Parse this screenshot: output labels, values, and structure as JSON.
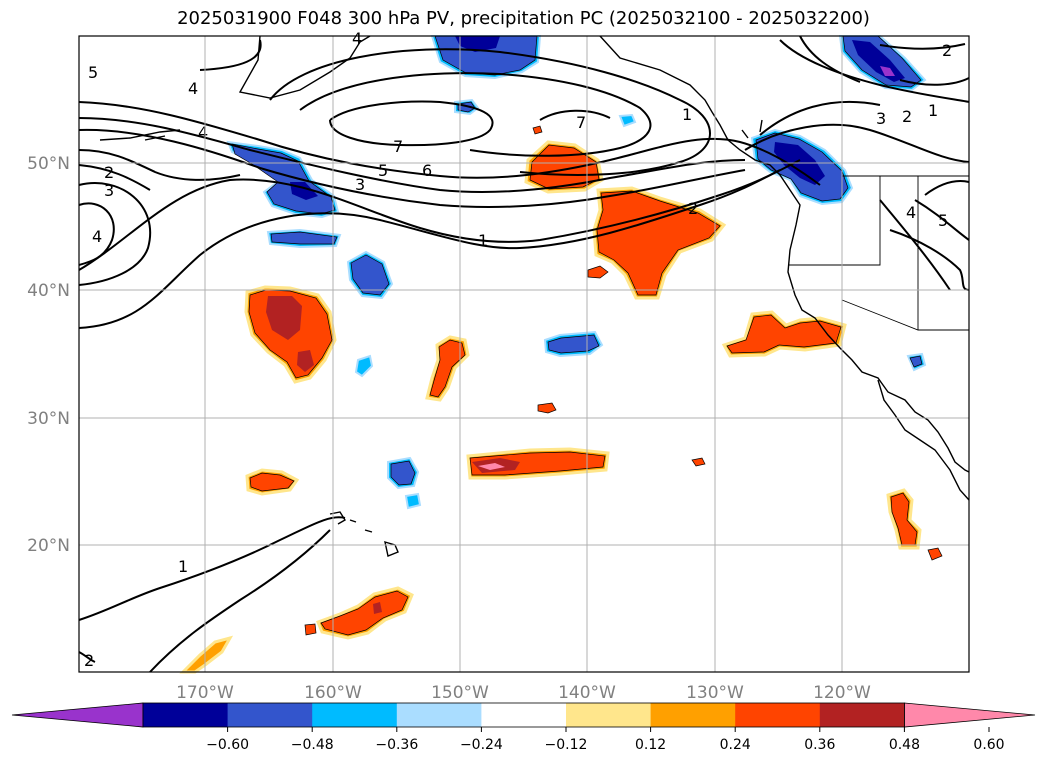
{
  "title": "2025031900 F048 300 hPa PV, precipitation PC (2025032100 - 2025032200)",
  "axes": {
    "lon_ticks": [
      "170°W",
      "160°W",
      "150°W",
      "140°W",
      "130°W",
      "120°W"
    ],
    "lat_ticks": [
      "50°N",
      "40°N",
      "30°N",
      "20°N"
    ]
  },
  "colorbar": {
    "colors": [
      "#9933cc",
      "#000099",
      "#3355cc",
      "#00bbff",
      "#aaddff",
      "#ffffff",
      "#ffe68c",
      "#ffa000",
      "#ff4400",
      "#b22222",
      "#ff88aa"
    ],
    "labels": [
      "−0.60",
      "−0.48",
      "−0.36",
      "−0.24",
      "−0.12",
      "0.12",
      "0.24",
      "0.36",
      "0.48",
      "0.60"
    ]
  },
  "contour_labels": [
    "5",
    "4",
    "4",
    "2",
    "3",
    "4",
    "7",
    "7",
    "6",
    "5",
    "3",
    "1",
    "2",
    "1",
    "3",
    "2",
    "1",
    "4",
    "5",
    "4",
    "2",
    "1",
    "2"
  ],
  "colors": {
    "positive_strong": "#b22222",
    "positive": "#ff4400",
    "positive_light": "#ffa000",
    "negative": "#3355cc",
    "negative_strong": "#000099",
    "light_blue": "#00bbff",
    "grid": "#b0b0b0"
  }
}
